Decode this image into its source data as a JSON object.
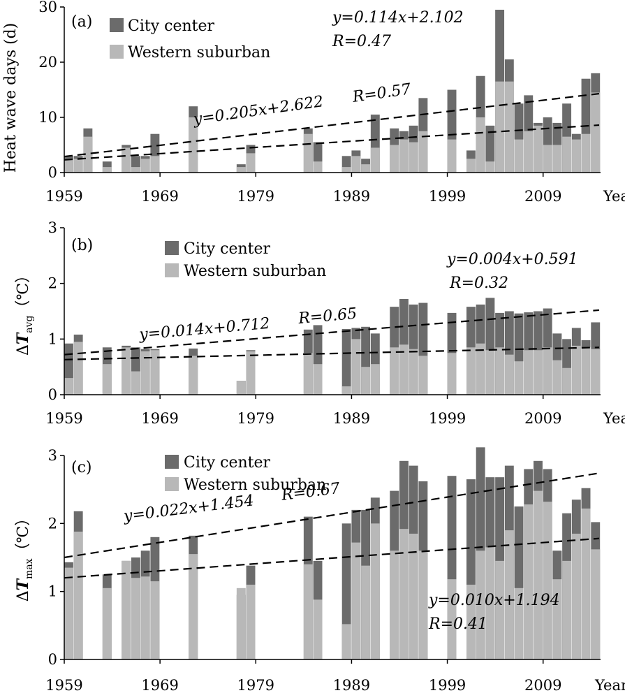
{
  "chart_data": [
    {
      "type": "bar",
      "panel": "(a)",
      "ylabel": "Heat wave days (d)",
      "xlabel": "Year",
      "ylim": [
        0,
        30
      ],
      "yticks": [
        "0",
        "10",
        "20",
        "30"
      ],
      "xticks": [
        "1959",
        "1969",
        "1979",
        "1989",
        "1999",
        "2009"
      ],
      "legend": {
        "position": "top-left",
        "entries": [
          "City center",
          "Western suburban"
        ]
      },
      "years": [
        1959,
        1960,
        1961,
        1962,
        1963,
        1964,
        1965,
        1966,
        1967,
        1968,
        1969,
        1970,
        1971,
        1972,
        1973,
        1974,
        1975,
        1976,
        1977,
        1978,
        1979,
        1980,
        1981,
        1982,
        1983,
        1984,
        1985,
        1986,
        1987,
        1988,
        1989,
        1990,
        1991,
        1992,
        1993,
        1994,
        1995,
        1996,
        1997,
        1998,
        1999,
        2000,
        2001,
        2002,
        2003,
        2004,
        2005,
        2006,
        2007,
        2008,
        2009,
        2010,
        2011,
        2012,
        2013,
        2014
      ],
      "series": [
        {
          "name": "City center",
          "color": "#6b6b6b",
          "values": [
            3,
            3,
            8,
            0,
            2,
            0,
            5,
            3,
            3,
            7,
            0,
            0,
            0,
            12,
            0,
            0,
            0,
            0,
            1.5,
            5,
            0,
            0,
            0,
            0,
            0,
            8,
            5.5,
            0,
            0,
            3,
            4,
            2.5,
            10.5,
            0,
            8,
            7.5,
            8.5,
            13.5,
            0,
            0,
            15,
            0,
            4,
            17.5,
            8.5,
            29.5,
            20.5,
            12.5,
            14,
            9,
            10,
            9,
            12.5,
            7,
            17,
            18
          ]
        },
        {
          "name": "Western suburban",
          "color": "#b8b8b8",
          "values": [
            2.5,
            2.5,
            6.5,
            0,
            1,
            0,
            4.5,
            1,
            2.5,
            3,
            0,
            0,
            0,
            10,
            0,
            0,
            0,
            0,
            1,
            3.5,
            0,
            0,
            0,
            0,
            0,
            7,
            2,
            0,
            0,
            1,
            3,
            1.5,
            4.5,
            0,
            5,
            6,
            5.5,
            7.5,
            0,
            0,
            6,
            0,
            2.5,
            10,
            2,
            16.5,
            16.5,
            6,
            7.5,
            8.5,
            5,
            5,
            6.5,
            6,
            7,
            14.5
          ]
        }
      ],
      "trendlines": [
        {
          "equation": "y=0.205x+2.622",
          "r": "R=0.57",
          "from": 2.9,
          "to": 14.3
        },
        {
          "equation": "y=0.114x+2.102",
          "r": "R=0.47",
          "from": 2.3,
          "to": 8.6
        }
      ]
    },
    {
      "type": "bar",
      "panel": "(b)",
      "ylabel": "ΔTavg (℃)",
      "ylabel_main": "Δ",
      "ylabel_italic": "T",
      "ylabel_sub": "avg",
      "ylabel_unit": "（℃）",
      "xlabel": "Year",
      "ylim": [
        0,
        3
      ],
      "yticks": [
        "0",
        "1",
        "2",
        "3"
      ],
      "xticks": [
        "1959",
        "1969",
        "1979",
        "1989",
        "1999",
        "2009"
      ],
      "legend": {
        "position": "top-left",
        "entries": [
          "City center",
          "Western suburban"
        ]
      },
      "years": [
        1959,
        1960,
        1961,
        1962,
        1963,
        1964,
        1965,
        1966,
        1967,
        1968,
        1969,
        1970,
        1971,
        1972,
        1973,
        1974,
        1975,
        1976,
        1977,
        1978,
        1979,
        1980,
        1981,
        1982,
        1983,
        1984,
        1985,
        1986,
        1987,
        1988,
        1989,
        1990,
        1991,
        1992,
        1993,
        1994,
        1995,
        1996,
        1997,
        1998,
        1999,
        2000,
        2001,
        2002,
        2003,
        2004,
        2005,
        2006,
        2007,
        2008,
        2009,
        2010,
        2011,
        2012,
        2013,
        2014
      ],
      "series": [
        {
          "name": "City center",
          "color": "#6b6b6b",
          "values": [
            0.92,
            1.08,
            0,
            0,
            0.85,
            0,
            0.88,
            0.85,
            0.82,
            0.82,
            0,
            0,
            0,
            0.83,
            0,
            0,
            0,
            0,
            0.25,
            0.8,
            0,
            0,
            0,
            0,
            0,
            1.17,
            1.25,
            0,
            0,
            1.18,
            1.2,
            1.22,
            1.1,
            0,
            1.58,
            1.72,
            1.62,
            1.65,
            0,
            0,
            1.47,
            0,
            1.58,
            1.62,
            1.74,
            1.47,
            1.5,
            1.46,
            1.48,
            1.5,
            1.55,
            1.1,
            1.0,
            1.2,
            0.98,
            1.3
          ]
        },
        {
          "name": "Western suburban",
          "color": "#b8b8b8",
          "values": [
            0.3,
            0.95,
            0,
            0,
            0.55,
            0,
            0.85,
            0.42,
            0.78,
            0.8,
            0,
            0,
            0,
            0.7,
            0,
            0,
            0,
            0,
            0.25,
            0.78,
            0,
            0,
            0,
            0,
            0,
            0.75,
            0.55,
            0,
            0,
            0.15,
            1.0,
            0.5,
            0.55,
            0,
            0.85,
            0.9,
            0.82,
            0.7,
            0,
            0,
            0.75,
            0,
            0.85,
            0.92,
            0.8,
            0.85,
            0.72,
            0.6,
            0.8,
            0.8,
            0.85,
            0.62,
            0.48,
            0.88,
            0.85,
            0.82
          ]
        }
      ],
      "trendlines": [
        {
          "equation": "y=0.014x+0.712",
          "r": "R=0.65",
          "from": 0.72,
          "to": 1.52
        },
        {
          "equation": "y=0.004x+0.591",
          "r": "R=0.32",
          "from": 0.63,
          "to": 0.85
        }
      ]
    },
    {
      "type": "bar",
      "panel": "(c)",
      "ylabel": "ΔTmax (℃)",
      "ylabel_main": "Δ",
      "ylabel_italic": "T",
      "ylabel_sub": "max",
      "ylabel_unit": "（℃）",
      "xlabel": "Year",
      "ylim": [
        0,
        3
      ],
      "yticks": [
        "0",
        "1",
        "2",
        "3"
      ],
      "xticks": [
        "1959",
        "1969",
        "1979",
        "1989",
        "1999",
        "2009"
      ],
      "legend": {
        "position": "top-left",
        "entries": [
          "City center",
          "Western suburban"
        ]
      },
      "years": [
        1959,
        1960,
        1961,
        1962,
        1963,
        1964,
        1965,
        1966,
        1967,
        1968,
        1969,
        1970,
        1971,
        1972,
        1973,
        1974,
        1975,
        1976,
        1977,
        1978,
        1979,
        1980,
        1981,
        1982,
        1983,
        1984,
        1985,
        1986,
        1987,
        1988,
        1989,
        1990,
        1991,
        1992,
        1993,
        1994,
        1995,
        1996,
        1997,
        1998,
        1999,
        2000,
        2001,
        2002,
        2003,
        2004,
        2005,
        2006,
        2007,
        2008,
        2009,
        2010,
        2011,
        2012,
        2013,
        2014
      ],
      "series": [
        {
          "name": "City center",
          "color": "#6b6b6b",
          "values": [
            1.43,
            2.18,
            0,
            0,
            1.25,
            0,
            1.45,
            1.5,
            1.6,
            1.8,
            0,
            0,
            0,
            1.82,
            0,
            0,
            0,
            0,
            0.95,
            1.38,
            0,
            0,
            0,
            0,
            0,
            2.1,
            1.45,
            0,
            0,
            2.0,
            2.2,
            2.2,
            2.38,
            0,
            2.48,
            2.92,
            2.85,
            2.62,
            0,
            0,
            2.7,
            0,
            2.65,
            3.12,
            2.68,
            2.68,
            2.85,
            2.25,
            2.8,
            2.92,
            2.8,
            1.6,
            2.15,
            2.35,
            2.52,
            2.02
          ]
        },
        {
          "name": "Western suburban",
          "color": "#b8b8b8",
          "values": [
            1.35,
            1.88,
            0,
            0,
            1.05,
            0,
            1.45,
            1.2,
            1.22,
            1.15,
            0,
            0,
            0,
            1.55,
            0,
            0,
            0,
            0,
            1.05,
            1.1,
            0,
            0,
            0,
            0,
            0,
            1.4,
            0.88,
            0,
            0,
            0.52,
            1.72,
            1.38,
            2.0,
            0,
            1.6,
            1.92,
            1.85,
            1.6,
            0,
            0,
            1.18,
            0,
            1.1,
            1.6,
            1.65,
            1.45,
            1.9,
            1.05,
            2.28,
            2.48,
            2.32,
            1.18,
            1.45,
            1.85,
            2.22,
            1.62
          ]
        }
      ],
      "trendlines": [
        {
          "equation": "y=0.022x+1.454",
          "r": "R=0.67",
          "from": 1.5,
          "to": 2.74
        },
        {
          "equation": "y=0.010x+1.194",
          "r": "R=0.41",
          "from": 1.2,
          "to": 1.78
        }
      ]
    }
  ]
}
